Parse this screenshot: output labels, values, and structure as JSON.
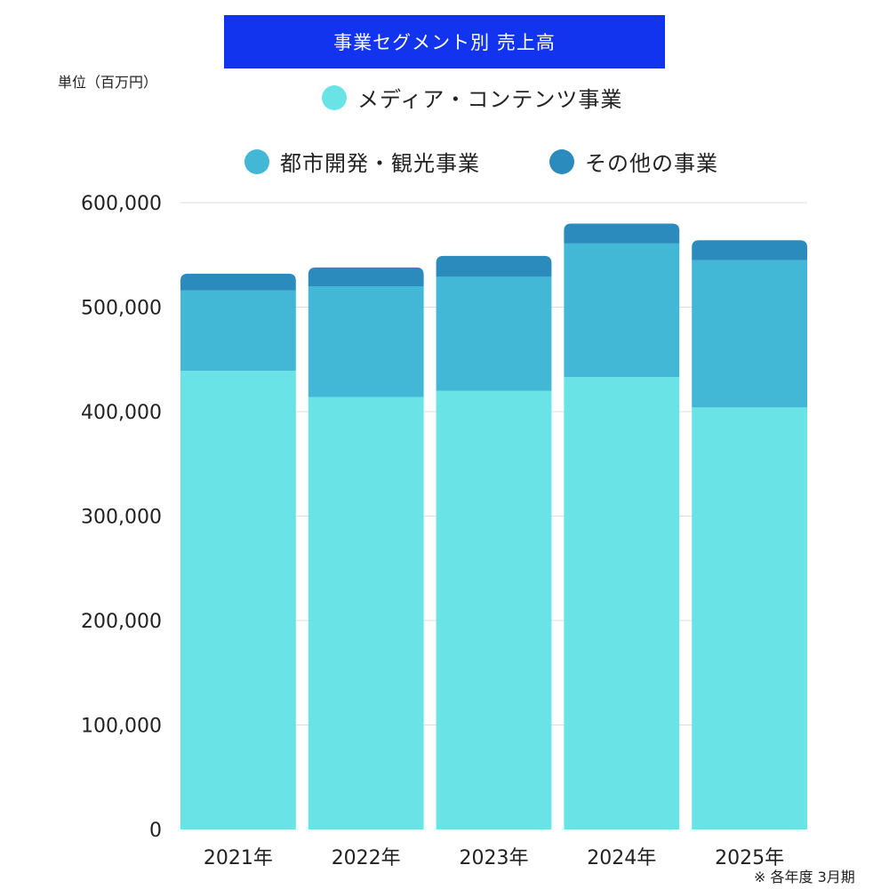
{
  "colors": {
    "title_bg": "#1234ee",
    "media_contents": "#6ae3e7",
    "urban_tourism": "#42b7d6",
    "other": "#2b8bbd",
    "grid": "#dddddd"
  },
  "header": {
    "title": "事業セグメント別 売上高",
    "unit": "単位（百万円）"
  },
  "footnote": "※ 各年度 3月期",
  "chart_data": {
    "type": "bar",
    "stacked": true,
    "title": "事業セグメント別 売上高",
    "ylabel": "単位（百万円）",
    "xlabel": "",
    "categories": [
      "2021年",
      "2022年",
      "2023年",
      "2024年",
      "2025年"
    ],
    "series": [
      {
        "name": "メディア・コンテンツ事業",
        "color_key": "media_contents",
        "values": [
          439000,
          414000,
          420000,
          433000,
          404000
        ]
      },
      {
        "name": "都市開発・観光事業",
        "color_key": "urban_tourism",
        "values": [
          77000,
          106000,
          109000,
          128000,
          141000
        ]
      },
      {
        "name": "その他の事業",
        "color_key": "other",
        "values": [
          16000,
          18000,
          20000,
          19000,
          19000
        ]
      }
    ],
    "ylim": [
      0,
      600000
    ],
    "yticks": [
      0,
      100000,
      200000,
      300000,
      400000,
      500000,
      600000
    ],
    "ytick_labels": [
      "0",
      "100,000",
      "200,000",
      "300,000",
      "400,000",
      "500,000",
      "600,000"
    ],
    "grid": true,
    "legend_position": "top"
  }
}
